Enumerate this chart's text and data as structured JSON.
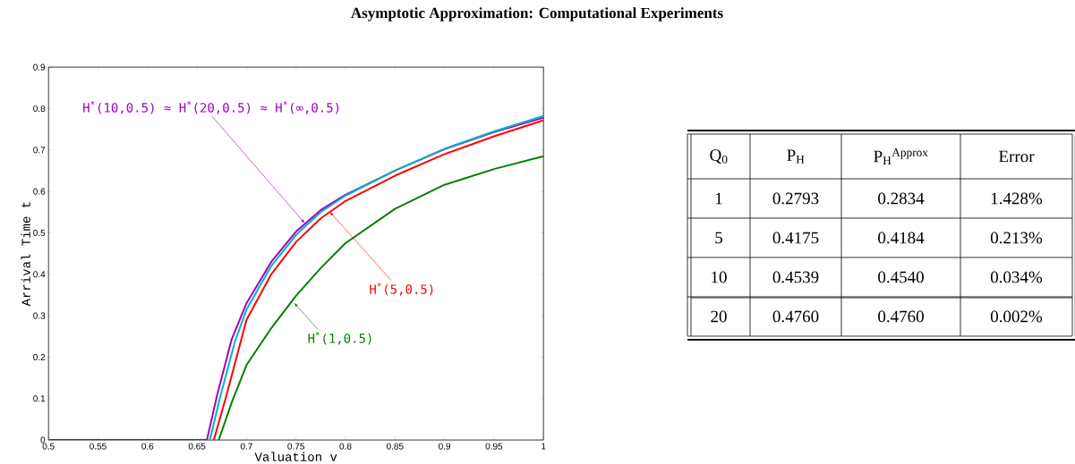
{
  "chart_data": [
    {
      "type": "line",
      "title": "Asymptotic Approximation: Computational Experiments",
      "xlabel": "Valuation  v",
      "ylabel": "Arrival Time  t",
      "xlim": [
        0.5,
        1
      ],
      "ylim": [
        0,
        0.9
      ],
      "xticks": [
        0.5,
        0.55,
        0.6,
        0.65,
        0.7,
        0.75,
        0.8,
        0.85,
        0.9,
        0.95,
        1
      ],
      "yticks": [
        0,
        0.1,
        0.2,
        0.3,
        0.4,
        0.5,
        0.6,
        0.7,
        0.8,
        0.9
      ],
      "series": [
        {
          "color": "#a000c0",
          "x": [
            0.5,
            0.66,
            0.67,
            0.685,
            0.7,
            0.725,
            0.75,
            0.775,
            0.8,
            0.85,
            0.9,
            0.95,
            1
          ],
          "values": [
            0,
            0,
            0.105,
            0.243,
            0.33,
            0.43,
            0.503,
            0.555,
            0.592,
            0.65,
            0.702,
            0.743,
            0.778
          ]
        },
        {
          "color": "#00b4c0",
          "x": [
            0.663,
            0.673,
            0.688,
            0.7,
            0.725,
            0.75,
            0.775,
            0.8,
            0.85,
            0.9,
            0.95,
            1
          ],
          "values": [
            0,
            0.1,
            0.235,
            0.315,
            0.42,
            0.495,
            0.55,
            0.59,
            0.65,
            0.703,
            0.745,
            0.782
          ]
        },
        {
          "color": "#ff0000",
          "x": [
            0.667,
            0.68,
            0.7,
            0.725,
            0.75,
            0.775,
            0.8,
            0.85,
            0.9,
            0.95,
            1
          ],
          "values": [
            0,
            0.11,
            0.29,
            0.4,
            0.478,
            0.535,
            0.577,
            0.638,
            0.69,
            0.733,
            0.772
          ]
        },
        {
          "color": "#008000",
          "x": [
            0.672,
            0.685,
            0.7,
            0.725,
            0.75,
            0.775,
            0.8,
            0.85,
            0.9,
            0.95,
            1
          ],
          "values": [
            0,
            0.09,
            0.181,
            0.27,
            0.348,
            0.415,
            0.475,
            0.558,
            0.616,
            0.654,
            0.685
          ]
        }
      ],
      "annotations": [
        {
          "text": "H$^{*}$(10,0.5) ≈ H$^{*}$(20,0.5) ≈ H$^{*}$(∞,0.5)",
          "x": 0.759,
          "y": 0.523
        },
        {
          "text": "H$^{*}$(5,0.5)",
          "x": 0.784,
          "y": 0.551
        },
        {
          "text": "H$^{*}$(1,0.5)",
          "x": 0.748,
          "y": 0.331
        }
      ]
    },
    {
      "type": "other",
      "categories": [
        "Q$_{0}$",
        "P$_{H}$",
        "P$_{H}$$^{Approx}$",
        "Error"
      ],
      "annotations": [
        "1",
        "0.2793",
        "0.2834",
        "1.428%",
        "5",
        "0.4175",
        "0.4184",
        "0.213%",
        "10",
        "0.4539",
        "0.4540",
        "0.034%",
        "20",
        "0.4760",
        "0.4760",
        "0.002%"
      ]
    }
  ]
}
